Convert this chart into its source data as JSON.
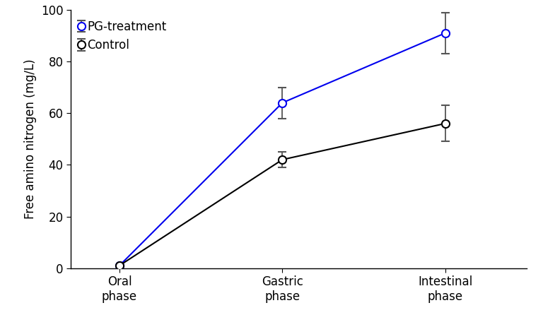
{
  "x_labels": [
    "Oral\nphase",
    "Gastric\nphase",
    "Intestinal\nphase"
  ],
  "x_positions": [
    0,
    1,
    2
  ],
  "pg_treatment": {
    "y": [
      1,
      64,
      91
    ],
    "yerr": [
      0,
      6,
      8
    ],
    "color": "#0000ee",
    "label": "PG-treatment",
    "marker": "o",
    "markersize": 8,
    "linewidth": 1.5
  },
  "control": {
    "y": [
      1,
      42,
      56
    ],
    "yerr": [
      0,
      3,
      7
    ],
    "color": "#000000",
    "label": "Control",
    "marker": "o",
    "markersize": 8,
    "linewidth": 1.5
  },
  "ylabel": "Free amino nitrogen (mg/L)",
  "ylim": [
    0,
    100
  ],
  "yticks": [
    0,
    20,
    40,
    60,
    80,
    100
  ],
  "error_color": "#555555",
  "error_capsize": 4,
  "error_linewidth": 1.3,
  "background_color": "#ffffff",
  "legend_fontsize": 12,
  "axis_fontsize": 12,
  "tick_fontsize": 12
}
